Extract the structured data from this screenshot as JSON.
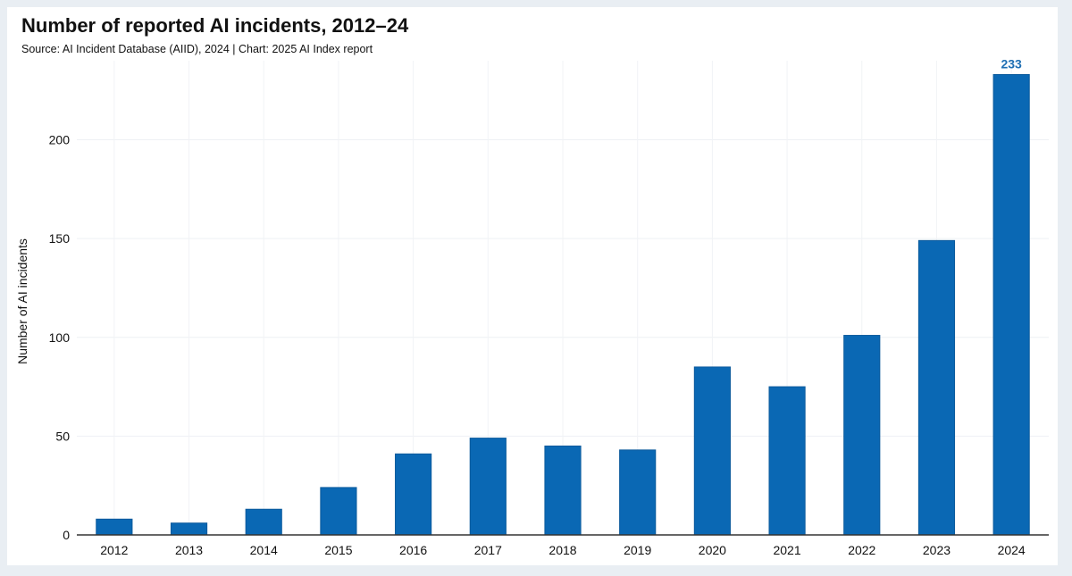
{
  "title": "Number of reported AI incidents, 2012–24",
  "subtitle": "Source: AI Incident Database (AIID), 2024 | Chart: 2025 AI Index report",
  "chart_data": {
    "type": "bar",
    "categories": [
      "2012",
      "2013",
      "2014",
      "2015",
      "2016",
      "2017",
      "2018",
      "2019",
      "2020",
      "2021",
      "2022",
      "2023",
      "2024"
    ],
    "values": [
      8,
      6,
      13,
      24,
      41,
      49,
      45,
      43,
      85,
      75,
      101,
      149,
      233
    ],
    "data_labels": [
      {
        "category": "2024",
        "text": "233"
      }
    ],
    "title": "Number of reported AI incidents, 2012–24",
    "xlabel": "",
    "ylabel": "Number of AI incidents",
    "ylim": [
      0,
      240
    ],
    "yticks": [
      0,
      50,
      100,
      150,
      200
    ],
    "grid": true,
    "legend": "none",
    "bar_color": "#0a68b4",
    "label_color": "#1f6fb3"
  }
}
